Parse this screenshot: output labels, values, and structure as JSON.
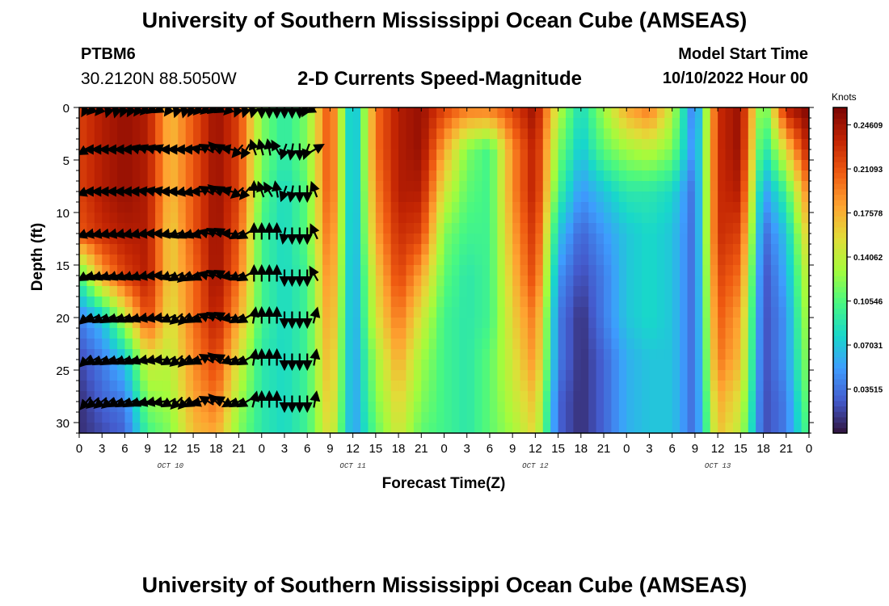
{
  "header": {
    "title": "University of Southern Mississippi Ocean Cube (AMSEAS)",
    "station_id": "PTBM6",
    "coords": "30.2120N  88.5050W",
    "chart_title": "2-D Currents Speed-Magnitude",
    "model_start_label": "Model Start Time",
    "model_start_value": "10/10/2022 Hour 00"
  },
  "footer": {
    "title": "University of Southern Mississippi Ocean Cube (AMSEAS)"
  },
  "chart_data": {
    "type": "heatmap",
    "title": "2-D Currents Speed-Magnitude",
    "xlabel": "Forecast Time(Z)",
    "ylabel": "Depth (ft)",
    "x_range": [
      0,
      96
    ],
    "x_ticks": [
      0,
      3,
      6,
      9,
      12,
      15,
      18,
      21,
      24,
      27,
      30,
      33,
      36,
      39,
      42,
      45,
      48,
      51,
      54,
      57,
      60,
      63,
      66,
      69,
      72,
      75,
      78,
      81,
      84,
      87,
      90,
      93,
      96
    ],
    "x_tick_labels": [
      "0",
      "3",
      "6",
      "9",
      "12",
      "15",
      "18",
      "21",
      "0",
      "3",
      "6",
      "9",
      "12",
      "15",
      "18",
      "21",
      "0",
      "3",
      "6",
      "9",
      "12",
      "15",
      "18",
      "21",
      "0",
      "3",
      "6",
      "9",
      "12",
      "15",
      "18",
      "21",
      "0"
    ],
    "day_labels": [
      {
        "text": "OCT 10",
        "at": 12
      },
      {
        "text": "OCT 11",
        "at": 36
      },
      {
        "text": "OCT 12",
        "at": 60
      },
      {
        "text": "OCT 13",
        "at": 84
      }
    ],
    "y_range": [
      0,
      31
    ],
    "y_ticks": [
      0,
      5,
      10,
      15,
      20,
      25,
      30
    ],
    "colorbar": {
      "unit": "Knots",
      "range": [
        0,
        0.26
      ],
      "ticks": [
        0.24609,
        0.21093,
        0.17578,
        0.14062,
        0.10546,
        0.07031,
        0.03515
      ],
      "tick_labels": [
        "0.24609",
        "0.21093",
        "0.17578",
        "0.14062",
        "0.10546",
        "0.07031",
        "0.03515"
      ]
    },
    "speed_grid": {
      "time_hours": [
        0,
        3,
        6,
        9,
        12,
        15,
        18,
        21,
        24,
        27,
        30,
        33,
        36,
        39,
        42,
        45,
        48,
        51,
        54,
        57,
        60,
        63,
        66,
        69,
        72,
        75,
        78,
        81,
        84,
        87,
        90,
        93,
        96
      ],
      "depths_ft": [
        0,
        4,
        8,
        12,
        16,
        20,
        24,
        28,
        31
      ],
      "values_knots": [
        [
          0.22,
          0.24,
          0.25,
          0.24,
          0.17,
          0.21,
          0.25,
          0.22,
          0.12,
          0.09,
          0.12,
          0.22,
          0.05,
          0.2,
          0.24,
          0.25,
          0.22,
          0.2,
          0.2,
          0.22,
          0.25,
          0.14,
          0.08,
          0.13,
          0.18,
          0.2,
          0.14,
          0.03,
          0.23,
          0.25,
          0.1,
          0.24,
          0.26
        ],
        [
          0.22,
          0.24,
          0.25,
          0.24,
          0.17,
          0.21,
          0.25,
          0.22,
          0.12,
          0.09,
          0.12,
          0.22,
          0.05,
          0.2,
          0.24,
          0.25,
          0.18,
          0.12,
          0.1,
          0.19,
          0.24,
          0.12,
          0.07,
          0.11,
          0.13,
          0.14,
          0.12,
          0.04,
          0.23,
          0.25,
          0.08,
          0.16,
          0.24
        ],
        [
          0.22,
          0.24,
          0.25,
          0.24,
          0.17,
          0.21,
          0.25,
          0.22,
          0.11,
          0.08,
          0.11,
          0.22,
          0.05,
          0.19,
          0.24,
          0.24,
          0.15,
          0.11,
          0.1,
          0.19,
          0.24,
          0.1,
          0.05,
          0.07,
          0.09,
          0.09,
          0.08,
          0.03,
          0.23,
          0.24,
          0.05,
          0.1,
          0.2
        ],
        [
          0.21,
          0.23,
          0.24,
          0.24,
          0.16,
          0.21,
          0.25,
          0.21,
          0.1,
          0.08,
          0.11,
          0.21,
          0.05,
          0.18,
          0.23,
          0.22,
          0.12,
          0.1,
          0.1,
          0.18,
          0.23,
          0.07,
          0.03,
          0.05,
          0.07,
          0.08,
          0.07,
          0.03,
          0.23,
          0.22,
          0.03,
          0.07,
          0.17
        ],
        [
          0.1,
          0.18,
          0.22,
          0.24,
          0.16,
          0.2,
          0.25,
          0.2,
          0.1,
          0.08,
          0.1,
          0.2,
          0.05,
          0.16,
          0.22,
          0.18,
          0.11,
          0.09,
          0.1,
          0.17,
          0.22,
          0.05,
          0.02,
          0.04,
          0.07,
          0.08,
          0.07,
          0.03,
          0.22,
          0.2,
          0.02,
          0.06,
          0.15
        ],
        [
          0.04,
          0.07,
          0.14,
          0.22,
          0.15,
          0.2,
          0.24,
          0.18,
          0.1,
          0.08,
          0.1,
          0.19,
          0.05,
          0.15,
          0.2,
          0.15,
          0.1,
          0.09,
          0.1,
          0.16,
          0.2,
          0.04,
          0.01,
          0.04,
          0.07,
          0.08,
          0.07,
          0.03,
          0.21,
          0.18,
          0.02,
          0.05,
          0.14
        ],
        [
          0.02,
          0.04,
          0.07,
          0.15,
          0.14,
          0.19,
          0.22,
          0.15,
          0.09,
          0.08,
          0.1,
          0.18,
          0.05,
          0.13,
          0.18,
          0.13,
          0.1,
          0.09,
          0.11,
          0.15,
          0.19,
          0.04,
          0.01,
          0.03,
          0.06,
          0.07,
          0.07,
          0.03,
          0.2,
          0.17,
          0.02,
          0.05,
          0.13
        ],
        [
          0.01,
          0.03,
          0.04,
          0.12,
          0.13,
          0.18,
          0.2,
          0.13,
          0.09,
          0.08,
          0.1,
          0.17,
          0.05,
          0.12,
          0.16,
          0.12,
          0.1,
          0.09,
          0.11,
          0.14,
          0.17,
          0.03,
          0.01,
          0.03,
          0.06,
          0.07,
          0.07,
          0.03,
          0.18,
          0.15,
          0.02,
          0.04,
          0.12
        ],
        [
          0.01,
          0.02,
          0.03,
          0.1,
          0.12,
          0.17,
          0.18,
          0.12,
          0.09,
          0.08,
          0.1,
          0.16,
          0.05,
          0.11,
          0.15,
          0.11,
          0.1,
          0.09,
          0.11,
          0.13,
          0.16,
          0.03,
          0.01,
          0.03,
          0.06,
          0.07,
          0.07,
          0.03,
          0.17,
          0.14,
          0.02,
          0.04,
          0.11
        ]
      ]
    },
    "arrows": {
      "times": [
        1,
        2,
        3,
        4,
        5,
        6,
        7,
        8,
        9,
        10,
        11,
        12,
        13,
        14,
        15,
        16,
        17,
        18,
        19,
        20,
        21,
        22,
        23,
        24,
        25,
        26,
        27,
        28,
        29,
        30,
        31
      ],
      "depths_ft": [
        0,
        4,
        8,
        12,
        16,
        20,
        24,
        28
      ],
      "direction_deg": [
        [
          210,
          225,
          220,
          200,
          195,
          205,
          210,
          215,
          225,
          235,
          240,
          215,
          200,
          195,
          210,
          225,
          230,
          235,
          240,
          225,
          205,
          200,
          195,
          180,
          180,
          180,
          180,
          180,
          180,
          210,
          240
        ],
        [
          240,
          270,
          270,
          270,
          270,
          270,
          270,
          285,
          290,
          285,
          290,
          270,
          270,
          270,
          270,
          280,
          300,
          315,
          300,
          280,
          220,
          210,
          340,
          345,
          350,
          330,
          200,
          190,
          180,
          200,
          60
        ],
        [
          250,
          270,
          270,
          270,
          270,
          270,
          270,
          270,
          275,
          280,
          280,
          270,
          270,
          260,
          260,
          270,
          300,
          310,
          300,
          285,
          230,
          220,
          0,
          340,
          330,
          350,
          200,
          190,
          180,
          180,
          340
        ],
        [
          250,
          260,
          260,
          260,
          260,
          260,
          260,
          260,
          265,
          270,
          270,
          260,
          250,
          245,
          250,
          255,
          285,
          300,
          300,
          270,
          240,
          240,
          0,
          0,
          0,
          0,
          190,
          180,
          180,
          180,
          335
        ],
        [
          240,
          250,
          250,
          250,
          250,
          250,
          250,
          250,
          260,
          265,
          270,
          250,
          240,
          230,
          240,
          245,
          285,
          300,
          300,
          260,
          245,
          240,
          0,
          0,
          0,
          0,
          180,
          180,
          180,
          180,
          330
        ],
        [
          230,
          245,
          240,
          240,
          245,
          245,
          245,
          250,
          260,
          260,
          265,
          245,
          230,
          225,
          240,
          245,
          290,
          300,
          300,
          260,
          240,
          240,
          10,
          0,
          0,
          0,
          180,
          180,
          180,
          180,
          15
        ],
        [
          225,
          240,
          240,
          240,
          245,
          245,
          245,
          250,
          260,
          260,
          265,
          240,
          230,
          225,
          240,
          245,
          300,
          310,
          300,
          250,
          240,
          240,
          10,
          0,
          0,
          0,
          180,
          180,
          180,
          180,
          10
        ],
        [
          220,
          230,
          230,
          230,
          240,
          240,
          240,
          245,
          255,
          260,
          260,
          240,
          225,
          225,
          240,
          250,
          300,
          315,
          300,
          240,
          240,
          240,
          15,
          0,
          0,
          0,
          180,
          180,
          180,
          180,
          10
        ]
      ]
    }
  }
}
